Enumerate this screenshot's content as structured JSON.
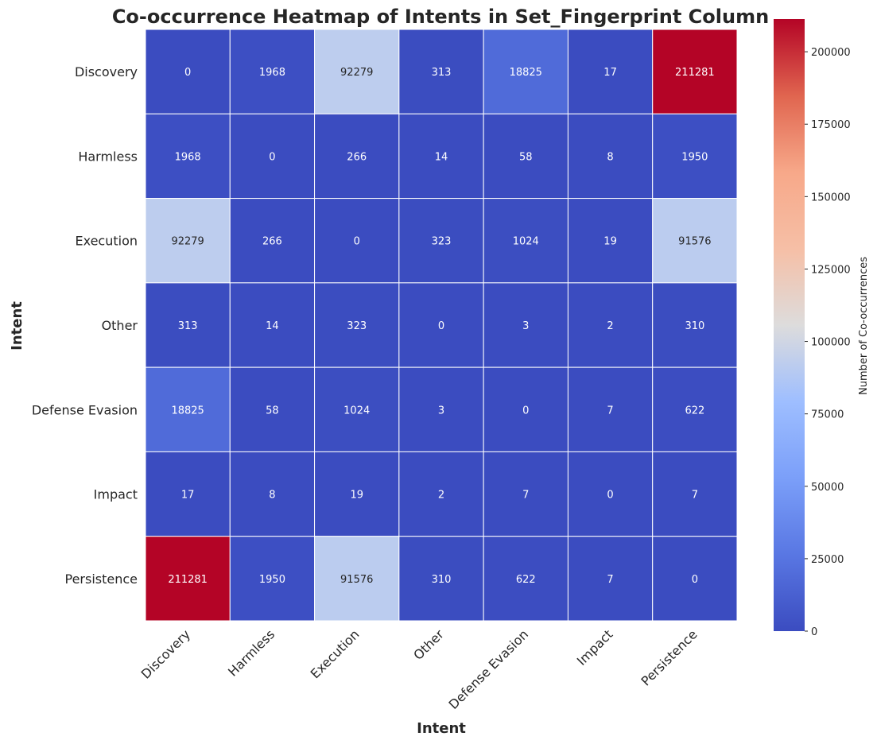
{
  "chart_data": {
    "type": "heatmap",
    "title": "Co-occurrence Heatmap of Intents in Set_Fingerprint Column",
    "xlabel": "Intent",
    "ylabel": "Intent",
    "x_categories": [
      "Discovery",
      "Harmless",
      "Execution",
      "Other",
      "Defense Evasion",
      "Impact",
      "Persistence"
    ],
    "y_categories": [
      "Discovery",
      "Harmless",
      "Execution",
      "Other",
      "Defense Evasion",
      "Impact",
      "Persistence"
    ],
    "values": [
      [
        0,
        1968,
        92279,
        313,
        18825,
        17,
        211281
      ],
      [
        1968,
        0,
        266,
        14,
        58,
        8,
        1950
      ],
      [
        92279,
        266,
        0,
        323,
        1024,
        19,
        91576
      ],
      [
        313,
        14,
        323,
        0,
        3,
        2,
        310
      ],
      [
        18825,
        58,
        1024,
        3,
        0,
        7,
        622
      ],
      [
        17,
        8,
        19,
        2,
        7,
        0,
        7
      ],
      [
        211281,
        1950,
        91576,
        310,
        622,
        7,
        0
      ]
    ],
    "colormap": "coolwarm",
    "vmin": 0,
    "vmax": 211281,
    "annotated": true,
    "colorbar": {
      "label": "Number of Co-occurrences",
      "ticks": [
        0,
        25000,
        50000,
        75000,
        100000,
        125000,
        150000,
        175000,
        200000
      ],
      "position": "right"
    }
  }
}
